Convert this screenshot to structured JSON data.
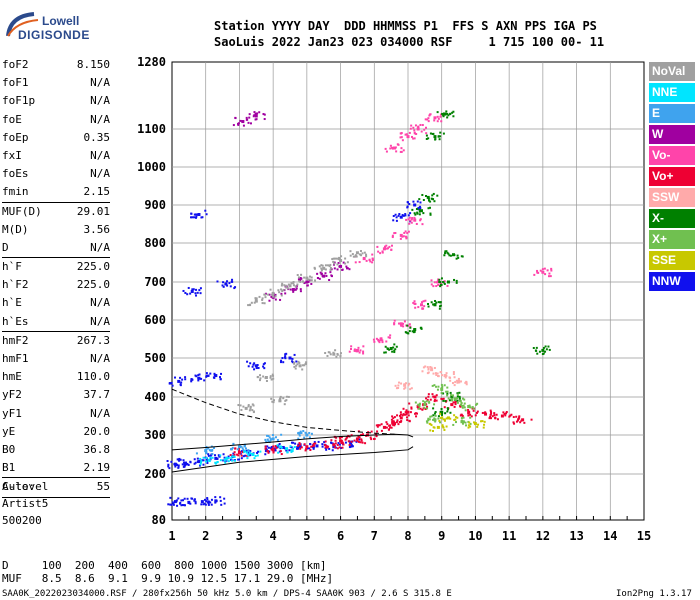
{
  "logo": {
    "top": "Lowell",
    "bottom": "DIGISONDE"
  },
  "header": {
    "line1": "Station YYYY DAY  DDD HHMMSS P1  FFS S AXN PPS IGA PS",
    "line2": "SaoLuis 2022 Jan23 023 034000 RSF     1 715 100 00- 11"
  },
  "params": [
    {
      "name": "foF2",
      "value": "8.150"
    },
    {
      "name": "foF1",
      "value": "N/A"
    },
    {
      "name": "foF1p",
      "value": "N/A"
    },
    {
      "name": "foE",
      "value": "N/A"
    },
    {
      "name": "foEp",
      "value": "0.35"
    },
    {
      "name": "fxI",
      "value": "N/A"
    },
    {
      "name": "foEs",
      "value": "N/A"
    },
    {
      "name": "fmin",
      "value": "2.15"
    },
    {
      "name": "MUF(D)",
      "value": "29.01",
      "sep": true
    },
    {
      "name": "M(D)",
      "value": "3.56"
    },
    {
      "name": "D",
      "value": "N/A"
    },
    {
      "name": "h`F",
      "value": "225.0",
      "sep": true
    },
    {
      "name": "h`F2",
      "value": "225.0"
    },
    {
      "name": "h`E",
      "value": "N/A"
    },
    {
      "name": "h`Es",
      "value": "N/A"
    },
    {
      "name": "hmF2",
      "value": "267.3",
      "sep": true
    },
    {
      "name": "hmF1",
      "value": "N/A"
    },
    {
      "name": "hmE",
      "value": "110.0"
    },
    {
      "name": "yF2",
      "value": "37.7"
    },
    {
      "name": "yF1",
      "value": "N/A"
    },
    {
      "name": "yE",
      "value": "20.0"
    },
    {
      "name": "B0",
      "value": "36.8"
    },
    {
      "name": "B1",
      "value": "2.19"
    },
    {
      "name": "C-level",
      "value": "55",
      "sep": true
    }
  ],
  "autoscale": {
    "line1": "Auto:",
    "line2": "Artist5",
    "line3": "500200"
  },
  "legend": [
    {
      "label": "NoVal",
      "color": "#a0a0a0"
    },
    {
      "label": "NNE",
      "color": "#00e5ff"
    },
    {
      "label": "E",
      "color": "#3fa3ee"
    },
    {
      "label": "W",
      "color": "#a000a0"
    },
    {
      "label": "Vo-",
      "color": "#ff44aa"
    },
    {
      "label": "Vo+",
      "color": "#ee0033"
    },
    {
      "label": "SSW",
      "color": "#ffaaaa"
    },
    {
      "label": "X-",
      "color": "#008000"
    },
    {
      "label": "X+",
      "color": "#70c050"
    },
    {
      "label": "SSE",
      "color": "#c8c800"
    },
    {
      "label": "NNW",
      "color": "#1010ee"
    }
  ],
  "footer": {
    "d_line": "D     100  200  400  600  800 1000 1500 3000 [km]",
    "muf_line": "MUF   8.5  8.6  9.1  9.9 10.9 12.5 17.1 29.0 [MHz]",
    "file_line": "SAA0K_2022023034000.RSF / 280fx256h 50 kHz 5.0 km / DPS-4 SAA0K 903 / 2.6 S 315.8 E",
    "version": "Ion2Png 1.3.17"
  },
  "chart_data": {
    "type": "scatter",
    "title": "",
    "xlabel": "",
    "ylabel": "",
    "xlim": [
      1,
      15
    ],
    "ylim": [
      80,
      1280
    ],
    "x_ticks": [
      1,
      2,
      3,
      4,
      5,
      6,
      7,
      8,
      9,
      10,
      11,
      12,
      13,
      14,
      15
    ],
    "y_ticks": [
      80,
      200,
      300,
      400,
      500,
      600,
      700,
      800,
      900,
      1000,
      1100,
      1280
    ],
    "grid": true,
    "legend_position": "right",
    "series": [
      {
        "name": "NNW",
        "color": "#1010ee",
        "points": [
          [
            1.1,
            225
          ],
          [
            1.4,
            228
          ],
          [
            1.8,
            232
          ],
          [
            2.3,
            240
          ],
          [
            2.8,
            245
          ],
          [
            3.3,
            250
          ],
          [
            3.8,
            260
          ],
          [
            4.3,
            268
          ],
          [
            4.8,
            275
          ],
          [
            5.3,
            272
          ],
          [
            5.8,
            270
          ],
          [
            6.3,
            280
          ],
          [
            1.2,
            440
          ],
          [
            1.8,
            448
          ],
          [
            2.3,
            455
          ],
          [
            3.5,
            480
          ],
          [
            4.5,
            500
          ],
          [
            1.6,
            675
          ],
          [
            2.6,
            695
          ],
          [
            1.8,
            875
          ],
          [
            7.8,
            868
          ],
          [
            8.2,
            900
          ],
          [
            1.1,
            128
          ],
          [
            1.5,
            126
          ],
          [
            1.9,
            128
          ],
          [
            2.3,
            130
          ]
        ]
      },
      {
        "name": "Vo+",
        "color": "#ee0033",
        "points": [
          [
            3.0,
            255
          ],
          [
            4.0,
            262
          ],
          [
            5.0,
            270
          ],
          [
            6.0,
            285
          ],
          [
            6.8,
            300
          ],
          [
            7.3,
            320
          ],
          [
            7.8,
            345
          ],
          [
            8.3,
            375
          ],
          [
            8.8,
            400
          ],
          [
            9.3,
            380
          ],
          [
            9.8,
            360
          ],
          [
            10.3,
            355
          ],
          [
            10.8,
            350
          ],
          [
            11.4,
            340
          ],
          [
            5.8,
            275
          ],
          [
            6.5,
            290
          ],
          [
            7.6,
            330
          ],
          [
            8.0,
            360
          ]
        ]
      },
      {
        "name": "Vo-",
        "color": "#ff44aa",
        "points": [
          [
            6.5,
            520
          ],
          [
            7.2,
            550
          ],
          [
            7.8,
            590
          ],
          [
            8.4,
            640
          ],
          [
            8.9,
            700
          ],
          [
            6.7,
            760
          ],
          [
            7.3,
            785
          ],
          [
            7.8,
            820
          ],
          [
            8.2,
            860
          ],
          [
            7.6,
            1050
          ],
          [
            8.0,
            1080
          ],
          [
            8.3,
            1100
          ],
          [
            8.8,
            1130
          ],
          [
            12.0,
            725
          ]
        ]
      },
      {
        "name": "X-",
        "color": "#008000",
        "points": [
          [
            7.5,
            525
          ],
          [
            8.2,
            575
          ],
          [
            8.8,
            640
          ],
          [
            9.2,
            700
          ],
          [
            9.35,
            770
          ],
          [
            8.4,
            885
          ],
          [
            8.6,
            920
          ],
          [
            8.8,
            1080
          ],
          [
            9.1,
            1140
          ],
          [
            9.0,
            360
          ],
          [
            9.3,
            400
          ],
          [
            12.0,
            520
          ]
        ]
      },
      {
        "name": "X+",
        "color": "#70c050",
        "points": [
          [
            8.5,
            380
          ],
          [
            9.0,
            420
          ],
          [
            9.4,
            395
          ],
          [
            9.8,
            375
          ],
          [
            8.8,
            340
          ],
          [
            9.6,
            335
          ]
        ]
      },
      {
        "name": "W",
        "color": "#a000a0",
        "points": [
          [
            3.1,
            1120
          ],
          [
            3.5,
            1135
          ],
          [
            5.5,
            715
          ],
          [
            6.0,
            740
          ],
          [
            4.0,
            660
          ],
          [
            4.6,
            680
          ],
          [
            5.0,
            700
          ]
        ]
      },
      {
        "name": "NoVal",
        "color": "#a0a0a0",
        "points": [
          [
            3.5,
            650
          ],
          [
            4.0,
            670
          ],
          [
            4.5,
            690
          ],
          [
            5.0,
            710
          ],
          [
            5.5,
            735
          ],
          [
            6.0,
            755
          ],
          [
            6.5,
            775
          ],
          [
            3.8,
            450
          ],
          [
            4.8,
            480
          ],
          [
            5.8,
            510
          ],
          [
            3.2,
            370
          ],
          [
            4.2,
            390
          ]
        ]
      },
      {
        "name": "SSW",
        "color": "#ffaaaa",
        "points": [
          [
            8.7,
            470
          ],
          [
            9.1,
            455
          ],
          [
            7.9,
            430
          ],
          [
            9.5,
            440
          ]
        ]
      },
      {
        "name": "SSE",
        "color": "#c8c800",
        "points": [
          [
            8.9,
            320
          ],
          [
            9.2,
            345
          ],
          [
            10.0,
            330
          ]
        ]
      },
      {
        "name": "NNE",
        "color": "#00e5ff",
        "points": [
          [
            2.1,
            235
          ],
          [
            2.6,
            238
          ],
          [
            3.4,
            250
          ],
          [
            4.4,
            265
          ]
        ]
      },
      {
        "name": "E",
        "color": "#3fa3ee",
        "points": [
          [
            2.0,
            260
          ],
          [
            3.0,
            270
          ],
          [
            4.0,
            290
          ],
          [
            5.0,
            300
          ]
        ]
      }
    ]
  }
}
